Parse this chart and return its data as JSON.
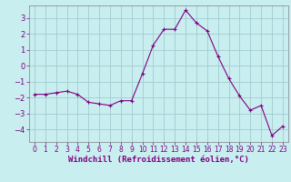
{
  "x": [
    0,
    1,
    2,
    3,
    4,
    5,
    6,
    7,
    8,
    9,
    10,
    11,
    12,
    13,
    14,
    15,
    16,
    17,
    18,
    19,
    20,
    21,
    22,
    23
  ],
  "y": [
    -1.8,
    -1.8,
    -1.7,
    -1.6,
    -1.8,
    -2.3,
    -2.4,
    -2.5,
    -2.2,
    -2.2,
    -0.5,
    1.3,
    2.3,
    2.3,
    3.5,
    2.7,
    2.2,
    0.6,
    -0.8,
    -1.9,
    -2.8,
    -2.5,
    -4.4,
    -3.8
  ],
  "line_color": "#800080",
  "marker": "+",
  "marker_size": 3,
  "marker_lw": 0.8,
  "bg_color": "#c8eef0",
  "grid_color": "#a0ccd0",
  "xlabel": "Windchill (Refroidissement éolien,°C)",
  "xlabel_color": "#800080",
  "tick_color": "#800080",
  "spine_color": "#808080",
  "ylim": [
    -4.8,
    3.8
  ],
  "xlim": [
    -0.5,
    23.5
  ],
  "yticks": [
    -4,
    -3,
    -2,
    -1,
    0,
    1,
    2,
    3
  ],
  "xticks": [
    0,
    1,
    2,
    3,
    4,
    5,
    6,
    7,
    8,
    9,
    10,
    11,
    12,
    13,
    14,
    15,
    16,
    17,
    18,
    19,
    20,
    21,
    22,
    23
  ],
  "figsize": [
    3.2,
    2.0
  ],
  "dpi": 100,
  "tick_fontsize": 5.5,
  "xlabel_fontsize": 6.5,
  "linewidth": 0.8
}
